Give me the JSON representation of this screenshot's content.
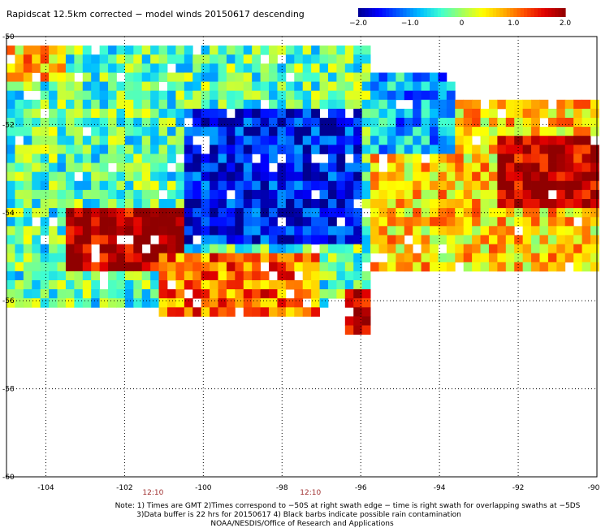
{
  "chart_data": {
    "type": "heatmap",
    "title": "Rapidscat 12.5km corrected − model winds 20150617 descending",
    "xlabel": "",
    "ylabel": "",
    "xlim": [
      -105,
      -90
    ],
    "ylim": [
      -60,
      -50
    ],
    "grid": true,
    "x_ticks": [
      -104,
      -102,
      -100,
      -98,
      -96,
      -94,
      -92,
      -90
    ],
    "x_tick_labels": [
      "-104",
      "-102",
      "-100",
      "-98",
      "-96",
      "-94",
      "-92",
      "-90"
    ],
    "y_ticks": [
      -50,
      -52,
      -54,
      -56,
      -58,
      -60
    ],
    "y_tick_labels": [
      "-50",
      "-52",
      "-54",
      "-56",
      "-58",
      "-60"
    ],
    "colorbar": {
      "range": [
        -2.0,
        2.0
      ],
      "ticks": [
        -2.0,
        -1.0,
        0,
        1.0,
        2.0
      ],
      "tick_labels": [
        "−2.0",
        "−1.0",
        "0",
        "1.0",
        "2.0"
      ],
      "colors": [
        "#000090",
        "#0000ff",
        "#0060ff",
        "#00c0ff",
        "#40ffd0",
        "#a0ff60",
        "#ffff00",
        "#ffb000",
        "#ff5000",
        "#e00000",
        "#900000"
      ]
    },
    "swath_time_labels": [
      {
        "x": -102,
        "label": "12:10"
      },
      {
        "x": -98,
        "label": "12:10"
      }
    ],
    "field_regions": [
      {
        "lon": [
          -105,
          -95.8
        ],
        "lat": [
          -56.2,
          -50.2
        ],
        "value": -0.3
      },
      {
        "lon": [
          -95.8,
          -90
        ],
        "lat": [
          -55.4,
          -51.5
        ],
        "value": 0.6
      },
      {
        "lon": [
          -103.5,
          -100.5
        ],
        "lat": [
          -55.3,
          -53.8
        ],
        "value": 1.9
      },
      {
        "lon": [
          -101.2,
          -97
        ],
        "lat": [
          -56.3,
          -54.9
        ],
        "value": 1.1
      },
      {
        "lon": [
          -100.5,
          -96
        ],
        "lat": [
          -54.7,
          -51.7
        ],
        "value": -1.6
      },
      {
        "lon": [
          -95.8,
          -93.5
        ],
        "lat": [
          -52.6,
          -50.8
        ],
        "value": -0.9
      },
      {
        "lon": [
          -92.5,
          -90
        ],
        "lat": [
          -53.8,
          -52.2
        ],
        "value": 1.8
      },
      {
        "lon": [
          -105,
          -103.5
        ],
        "lat": [
          -51,
          -50.2
        ],
        "value": 0.7
      },
      {
        "lon": [
          -96.5,
          -95.8
        ],
        "lat": [
          -56.7,
          -55.7
        ],
        "value": 1.7
      }
    ]
  },
  "notes": {
    "line1": "Note: 1) Times are GMT 2)Times correspond to −50S at right swath edge − time is right swath for overlapping swaths at −5DS",
    "line2": "3)Data buffer is 22 hrs for 20150617 4) Black barbs indicate possible rain contamination",
    "line3": "NOAA/NESDIS/Office of Research and Applications"
  }
}
